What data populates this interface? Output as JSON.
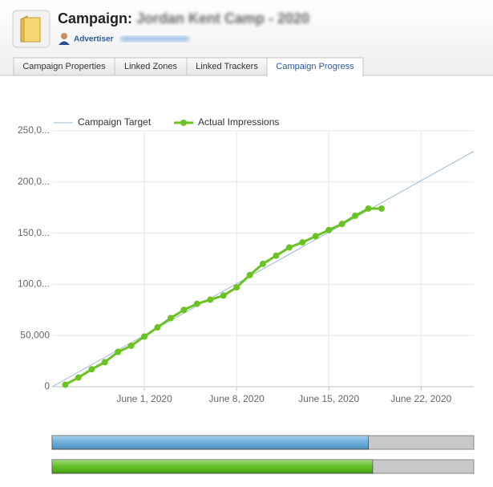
{
  "header": {
    "title": "Campaign:",
    "campaign_name": "Jordan Kent Camp - 2020",
    "advertiser_label": "Advertiser"
  },
  "tabs": [
    "Campaign Properties",
    "Linked Zones",
    "Linked Trackers",
    "Campaign Progress"
  ],
  "active_tab": 3,
  "chart_data": {
    "type": "line",
    "xlim": [
      "2020-05-25",
      "2020-06-26"
    ],
    "xticks": [
      {
        "value": "2020-06-01",
        "label": "June 1, 2020"
      },
      {
        "value": "2020-06-08",
        "label": "June 8, 2020"
      },
      {
        "value": "2020-06-15",
        "label": "June 15, 2020"
      },
      {
        "value": "2020-06-22",
        "label": "June 22, 2020"
      }
    ],
    "ylim": [
      0,
      250000
    ],
    "yticks": [
      0,
      {
        "value": 50000,
        "label": "50,000"
      },
      {
        "value": 100000,
        "label": "100,0..."
      },
      {
        "value": 150000,
        "label": "150,0..."
      },
      {
        "value": 200000,
        "label": "200,0..."
      },
      {
        "value": 250000,
        "label": "250,0..."
      }
    ],
    "grid": true,
    "legend": "top",
    "series": [
      {
        "name": "Campaign Target",
        "color": "#9bb9d6",
        "markers": false,
        "x": [
          "2020-05-25",
          "2020-06-26"
        ],
        "values": [
          0,
          230000
        ]
      },
      {
        "name": "Actual Impressions",
        "color": "#6ac322",
        "markers": true,
        "x": [
          "2020-05-26",
          "2020-05-27",
          "2020-05-28",
          "2020-05-29",
          "2020-05-30",
          "2020-05-31",
          "2020-06-01",
          "2020-06-02",
          "2020-06-03",
          "2020-06-04",
          "2020-06-05",
          "2020-06-06",
          "2020-06-07",
          "2020-06-08",
          "2020-06-09",
          "2020-06-10",
          "2020-06-11",
          "2020-06-12",
          "2020-06-13",
          "2020-06-14",
          "2020-06-15",
          "2020-06-16",
          "2020-06-17",
          "2020-06-18",
          "2020-06-19"
        ],
        "values": [
          2000,
          9000,
          17000,
          24000,
          34000,
          40000,
          49000,
          58000,
          67000,
          75000,
          81000,
          85000,
          89000,
          97000,
          109000,
          120000,
          128000,
          136000,
          141000,
          147000,
          153000,
          159000,
          167000,
          174000,
          174000
        ]
      }
    ]
  },
  "progress_bars": [
    {
      "color": "#5aa6d8",
      "value": 75
    },
    {
      "color": "#4fb80e",
      "value": 76
    }
  ]
}
